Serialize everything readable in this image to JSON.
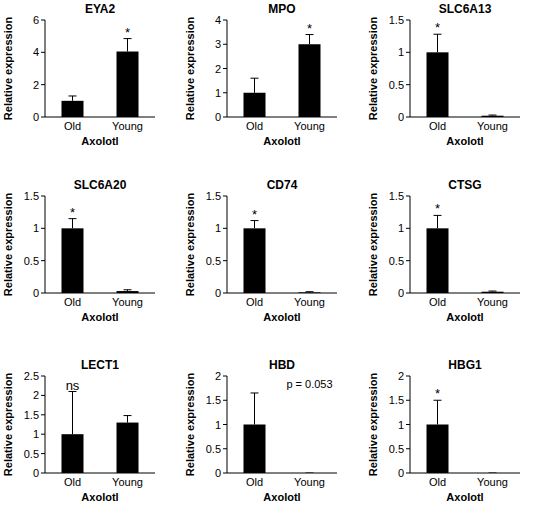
{
  "chart_data": [
    {
      "type": "bar",
      "title": "EYA2",
      "y_label": "Relative expression",
      "x_label": "Axolotl",
      "categories": [
        "Old",
        "Young"
      ],
      "values": [
        1,
        4.05
      ],
      "errors": [
        0.3,
        0.8
      ],
      "color": "#000000",
      "ylim": [
        0,
        6
      ],
      "yticks": [
        0,
        2,
        4,
        6
      ],
      "annotations": [
        {
          "text": "*",
          "category": "Young"
        }
      ]
    },
    {
      "type": "bar",
      "title": "MPO",
      "y_label": "Relative expression",
      "x_label": "Axolotl",
      "categories": [
        "Old",
        "Young"
      ],
      "values": [
        1,
        3
      ],
      "errors": [
        0.6,
        0.4
      ],
      "color": "#000000",
      "ylim": [
        0,
        4
      ],
      "yticks": [
        0,
        1,
        2,
        3,
        4
      ],
      "annotations": [
        {
          "text": "*",
          "category": "Young"
        }
      ]
    },
    {
      "type": "bar",
      "title": "SLC6A13",
      "y_label": "Relative expression",
      "x_label": "Axolotl",
      "categories": [
        "Old",
        "Young"
      ],
      "values": [
        1,
        0.02
      ],
      "errors": [
        0.28,
        0.01
      ],
      "color": "#000000",
      "ylim": [
        0,
        1.5
      ],
      "yticks": [
        0,
        0.5,
        1,
        1.5
      ],
      "annotations": [
        {
          "text": "*",
          "category": "Old"
        }
      ]
    },
    {
      "type": "bar",
      "title": "SLC6A20",
      "y_label": "Relative expression",
      "x_label": "Axolotl",
      "categories": [
        "Old",
        "Young"
      ],
      "values": [
        1,
        0.03
      ],
      "errors": [
        0.15,
        0.02
      ],
      "color": "#000000",
      "ylim": [
        0,
        1.5
      ],
      "yticks": [
        0,
        0.5,
        1,
        1.5
      ],
      "annotations": [
        {
          "text": "*",
          "category": "Old"
        }
      ]
    },
    {
      "type": "bar",
      "title": "CD74",
      "y_label": "Relative expression",
      "x_label": "Axolotl",
      "categories": [
        "Old",
        "Young"
      ],
      "values": [
        1,
        0.01
      ],
      "errors": [
        0.12,
        0.01
      ],
      "color": "#000000",
      "ylim": [
        0,
        1.5
      ],
      "yticks": [
        0,
        0.5,
        1,
        1.5
      ],
      "annotations": [
        {
          "text": "*",
          "category": "Old"
        }
      ]
    },
    {
      "type": "bar",
      "title": "CTSG",
      "y_label": "Relative expression",
      "x_label": "Axolotl",
      "categories": [
        "Old",
        "Young"
      ],
      "values": [
        1,
        0.02
      ],
      "errors": [
        0.2,
        0.01
      ],
      "color": "#000000",
      "ylim": [
        0,
        1.5
      ],
      "yticks": [
        0,
        0.5,
        1,
        1.5
      ],
      "annotations": [
        {
          "text": "*",
          "category": "Old"
        }
      ]
    },
    {
      "type": "bar",
      "title": "LECT1",
      "y_label": "Relative expression",
      "x_label": "Axolotl",
      "categories": [
        "Old",
        "Young"
      ],
      "values": [
        1,
        1.3
      ],
      "errors": [
        1.1,
        0.18
      ],
      "color": "#000000",
      "ylim": [
        0,
        2.5
      ],
      "yticks": [
        0,
        0.5,
        1,
        1.5,
        2,
        2.5
      ],
      "annotations": [
        {
          "text": "ns",
          "category": "Old"
        }
      ]
    },
    {
      "type": "bar",
      "title": "HBD",
      "y_label": "Relative expression",
      "x_label": "Axolotl",
      "categories": [
        "Old",
        "Young"
      ],
      "values": [
        1,
        0
      ],
      "errors": [
        0.65,
        0
      ],
      "color": "#000000",
      "ylim": [
        0,
        2
      ],
      "yticks": [
        0,
        0.5,
        1,
        1.5,
        2
      ],
      "annotations": [
        {
          "text": "p = 0.053",
          "category": "Young"
        }
      ]
    },
    {
      "type": "bar",
      "title": "HBG1",
      "y_label": "Relative expression",
      "x_label": "Axolotl",
      "categories": [
        "Old",
        "Young"
      ],
      "values": [
        1,
        0
      ],
      "errors": [
        0.5,
        0
      ],
      "color": "#000000",
      "ylim": [
        0,
        2
      ],
      "yticks": [
        0,
        0.5,
        1,
        1.5,
        2
      ],
      "annotations": [
        {
          "text": "*",
          "category": "Old"
        }
      ]
    }
  ]
}
